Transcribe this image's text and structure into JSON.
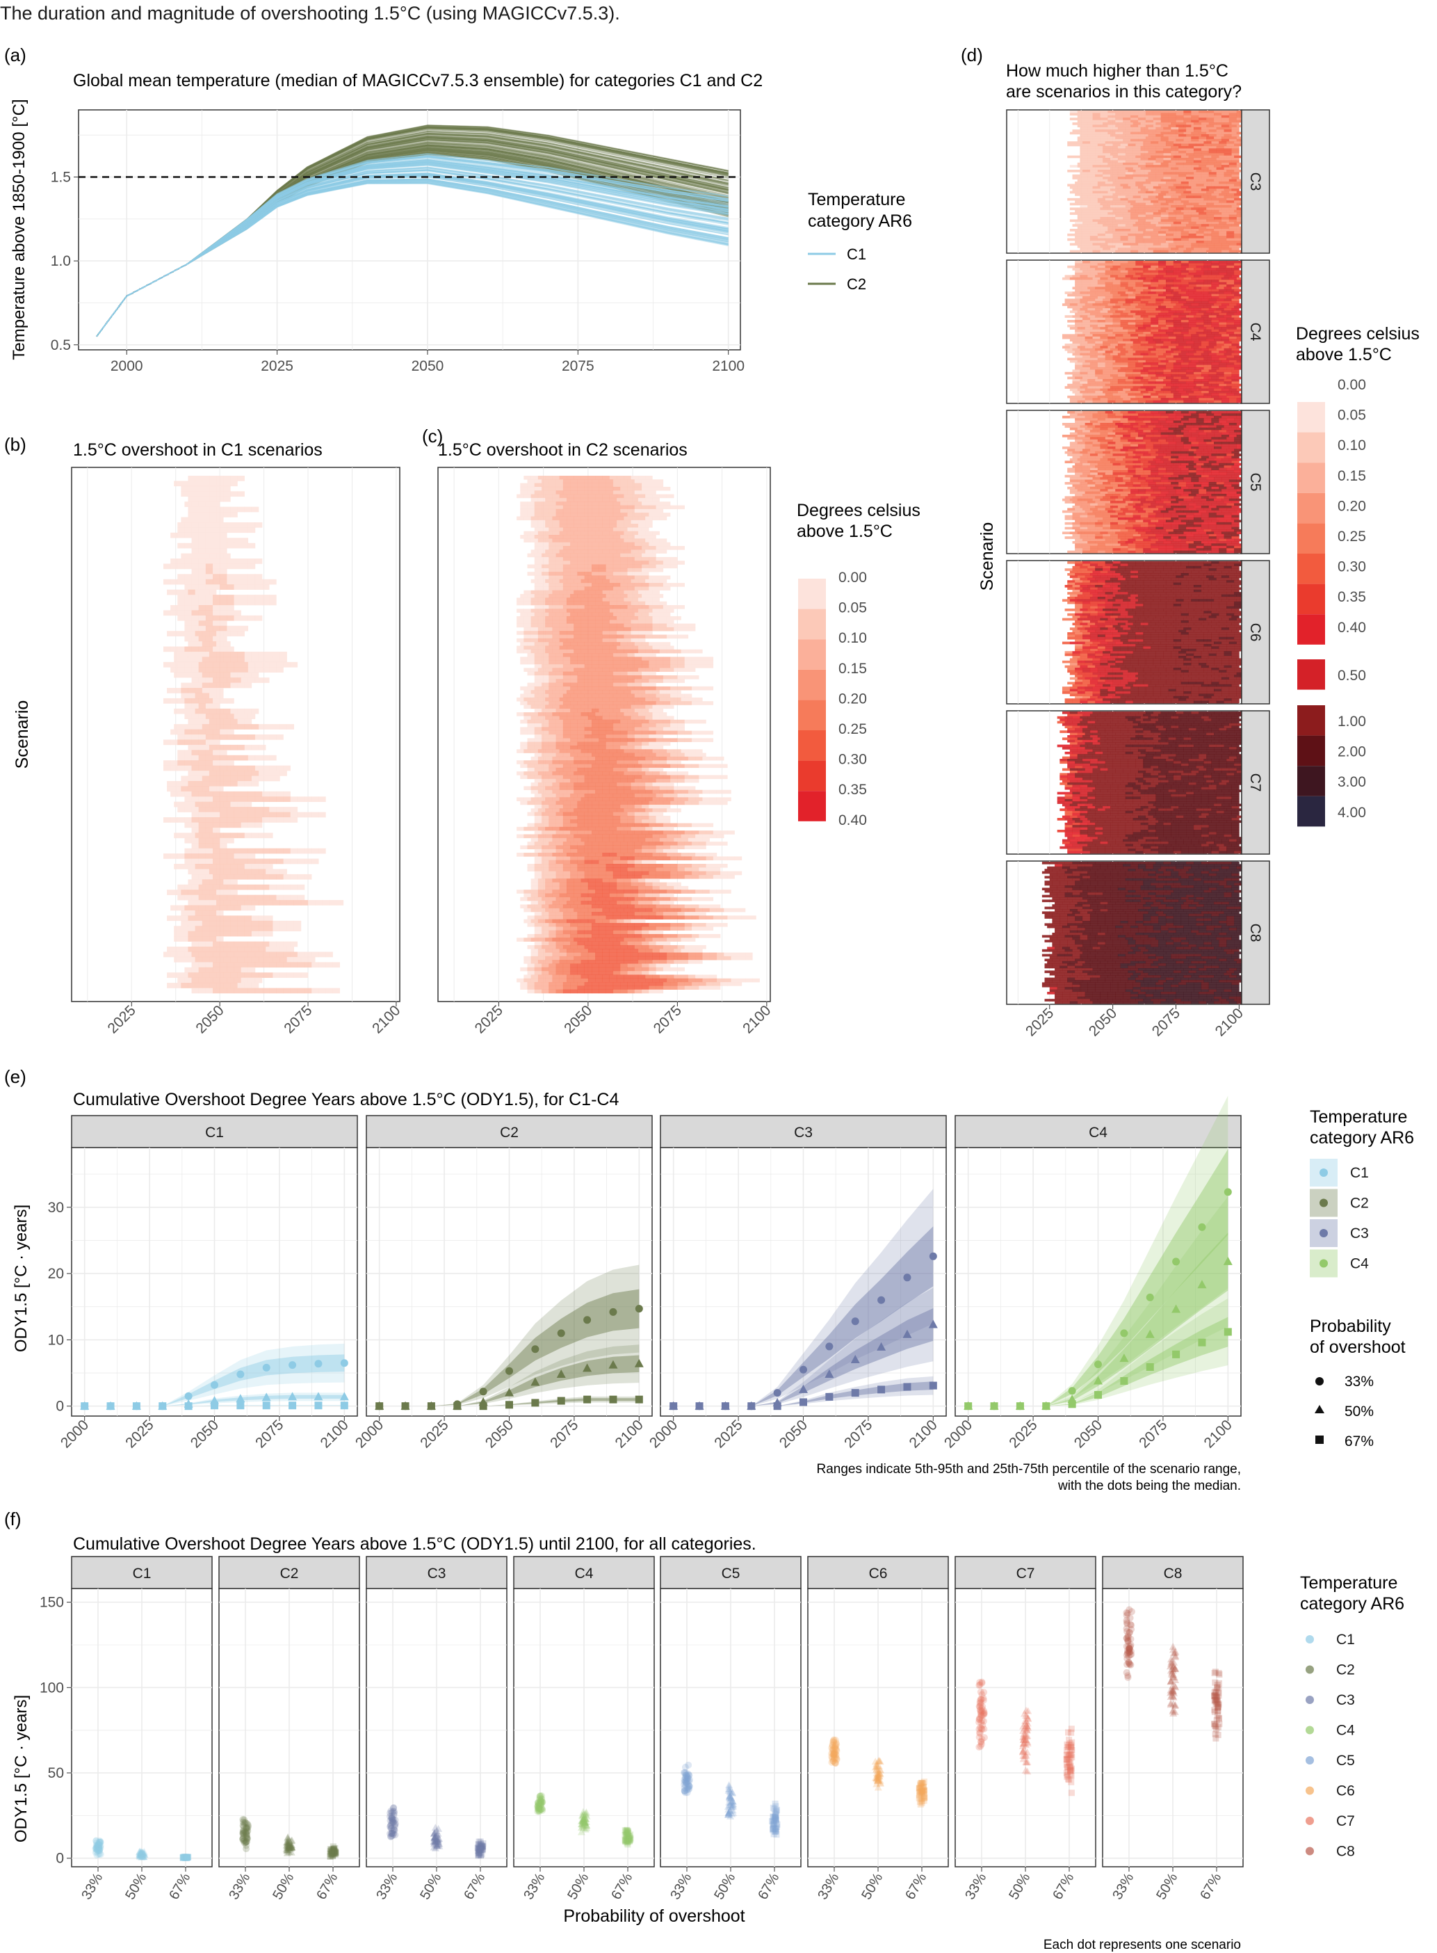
{
  "title": "The duration and magnitude of overshooting 1.5°C (using MAGICCv7.5.3).",
  "colors": {
    "C1": "#8ecbe5",
    "C2": "#6b7a4c",
    "C3": "#6e7aa8",
    "C4": "#93c96a",
    "C5": "#7fa4d4",
    "C6": "#f4a95c",
    "C7": "#e8755f",
    "C8": "#b85a4c",
    "grid": "#ebebeb",
    "strip": "#d9d9d9"
  },
  "overshoot_scale": {
    "labels": [
      "0.00",
      "0.05",
      "0.10",
      "0.15",
      "0.20",
      "0.25",
      "0.30",
      "0.35",
      "0.40"
    ],
    "colors": [
      "#fde3dc",
      "#fcc9b8",
      "#fbb09a",
      "#f99477",
      "#f67b5a",
      "#f25b3e",
      "#ea3b2d",
      "#e2222a"
    ]
  },
  "overshoot_scale_d": {
    "labels": [
      "0.00",
      "0.05",
      "0.10",
      "0.15",
      "0.20",
      "0.25",
      "0.30",
      "0.35",
      "0.40",
      "0.50",
      "1.00",
      "2.00",
      "3.00",
      "4.00"
    ],
    "colors": [
      "#fde3dc",
      "#fcc9b8",
      "#fbb09a",
      "#f99477",
      "#f67b5a",
      "#f25b3e",
      "#ea3b2d",
      "#e2222a",
      "#d42128",
      "#8c1c1d",
      "#5e1116",
      "#3e1620",
      "#2a2640"
    ]
  },
  "panel_a": {
    "tag": "(a)",
    "title": "Global mean temperature (median of MAGICCv7.5.3 ensemble) for categories C1 and C2",
    "ylabel": "Temperature above 1850-1900 [°C]",
    "legend_title_1": "Temperature",
    "legend_title_2": "category AR6",
    "legend_items": [
      "C1",
      "C2"
    ],
    "chart_data": {
      "type": "line",
      "xlim": [
        1992,
        2102
      ],
      "ylim": [
        0.47,
        1.9
      ],
      "x_ticks": [
        2000,
        2025,
        2050,
        2075,
        2100
      ],
      "y_ticks": [
        0.5,
        1.0,
        1.5
      ],
      "x_tick_labels": [
        "2000",
        "2025",
        "2050",
        "2075",
        "2100"
      ],
      "y_tick_labels": [
        "0.5",
        "1.0",
        "1.5"
      ],
      "reference_line": 1.5,
      "series": [
        {
          "name": "C1",
          "x": [
            1995,
            2000,
            2010,
            2020,
            2025,
            2030,
            2040,
            2050,
            2060,
            2070,
            2080,
            2090,
            2100
          ],
          "median": [
            0.55,
            0.79,
            0.98,
            1.22,
            1.36,
            1.44,
            1.53,
            1.55,
            1.5,
            1.44,
            1.37,
            1.3,
            1.24
          ],
          "spread": [
            0,
            0,
            0,
            0.03,
            0.04,
            0.05,
            0.07,
            0.09,
            0.1,
            0.12,
            0.13,
            0.14,
            0.15
          ]
        },
        {
          "name": "C2",
          "x": [
            1995,
            2000,
            2010,
            2020,
            2025,
            2030,
            2040,
            2050,
            2060,
            2070,
            2080,
            2090,
            2100
          ],
          "median": [
            0.55,
            0.79,
            0.98,
            1.22,
            1.38,
            1.5,
            1.66,
            1.72,
            1.7,
            1.64,
            1.56,
            1.48,
            1.4
          ],
          "spread": [
            0,
            0,
            0,
            0.03,
            0.04,
            0.06,
            0.08,
            0.09,
            0.1,
            0.11,
            0.12,
            0.13,
            0.14
          ]
        }
      ]
    }
  },
  "panel_b": {
    "tag": "(b)",
    "title": "1.5°C overshoot in C1 scenarios",
    "ylabel": "Scenario",
    "chart_data": {
      "type": "heatmap",
      "xlim": [
        2008,
        2101
      ],
      "x_ticks": [
        2025,
        2050,
        2075,
        2100
      ],
      "x_tick_labels": [
        "2025",
        "2050",
        "2075",
        "2100"
      ],
      "rows": 100,
      "start_range": [
        2034,
        2043
      ],
      "end_range": [
        2048,
        2090
      ],
      "peak": 0.1
    }
  },
  "panel_c": {
    "tag": "(c)",
    "title": "1.5°C overshoot in C2 scenarios",
    "chart_data": {
      "type": "heatmap",
      "xlim": [
        2008,
        2101
      ],
      "x_ticks": [
        2025,
        2050,
        2075,
        2100
      ],
      "x_tick_labels": [
        "2025",
        "2050",
        "2075",
        "2100"
      ],
      "rows": 140,
      "start_range": [
        2030,
        2036
      ],
      "end_range": [
        2065,
        2100
      ],
      "peak": 0.3
    },
    "legend_title_1": "Degrees celsius",
    "legend_title_2": "above 1.5°C"
  },
  "panel_d": {
    "tag": "(d)",
    "title_1": "How much higher than 1.5°C",
    "title_2": "are scenarios in this category?",
    "ylabel": "Scenario",
    "legend_title_1": "Degrees celsius",
    "legend_title_2": "above 1.5°C",
    "chart_data": {
      "type": "heatmap",
      "xlim": [
        2008,
        2101
      ],
      "x_ticks": [
        2025,
        2050,
        2075,
        2100
      ],
      "x_tick_labels": [
        "2025",
        "2050",
        "2075",
        "2100"
      ],
      "facets": [
        {
          "name": "C3",
          "start": 2032,
          "level": 0.22
        },
        {
          "name": "C4",
          "start": 2030,
          "level": 0.4
        },
        {
          "name": "C5",
          "start": 2030,
          "level": 0.48
        },
        {
          "name": "C6",
          "start": 2030,
          "level": 0.9
        },
        {
          "name": "C7",
          "start": 2028,
          "level": 1.3
        },
        {
          "name": "C8",
          "start": 2022,
          "level": 2.4
        }
      ]
    }
  },
  "panel_e": {
    "tag": "(e)",
    "title": "Cumulative Overshoot Degree Years above 1.5°C (ODY1.5), for C1-C4",
    "ylabel": "ODY1.5 [°C · years]",
    "legend_title_1": "Temperature",
    "legend_title_2": "category AR6",
    "legend_items": [
      "C1",
      "C2",
      "C3",
      "C4"
    ],
    "prob_title_1": "Probability",
    "prob_title_2": "of overshoot",
    "prob_items": [
      "33%",
      "50%",
      "67%"
    ],
    "note_1": "Ranges indicate 5th-95th and 25th-75th percentile of the scenario range,",
    "note_2": "with the dots being the median.",
    "chart_data": {
      "type": "line",
      "x": [
        2000,
        2010,
        2020,
        2030,
        2040,
        2050,
        2060,
        2070,
        2080,
        2090,
        2100
      ],
      "xlim": [
        1995,
        2105
      ],
      "ylim": [
        -1.5,
        39
      ],
      "x_ticks": [
        2000,
        2025,
        2050,
        2075,
        2100
      ],
      "x_tick_labels": [
        "2000",
        "2025",
        "2050",
        "2075",
        "2100"
      ],
      "y_ticks": [
        0,
        10,
        20,
        30
      ],
      "y_tick_labels": [
        "0",
        "10",
        "20",
        "30"
      ],
      "facets": [
        {
          "name": "C1",
          "p33": [
            0,
            0,
            0,
            0,
            1.5,
            3.2,
            4.8,
            5.8,
            6.2,
            6.4,
            6.5
          ],
          "p50": [
            0,
            0,
            0,
            0,
            0.3,
            0.8,
            1.1,
            1.3,
            1.4,
            1.4,
            1.4
          ],
          "p67": [
            0,
            0,
            0,
            0,
            0,
            0.1,
            0.1,
            0.1,
            0.1,
            0.1,
            0.1
          ]
        },
        {
          "name": "C2",
          "p33": [
            0,
            0,
            0,
            0.3,
            2.2,
            5.3,
            8.6,
            11.0,
            13.0,
            14.2,
            14.7
          ],
          "p50": [
            0,
            0,
            0,
            0,
            0.6,
            2.0,
            3.6,
            4.8,
            5.7,
            6.2,
            6.4
          ],
          "p67": [
            0,
            0,
            0,
            0,
            0,
            0.2,
            0.5,
            0.8,
            1.0,
            1.0,
            1.0
          ]
        },
        {
          "name": "C3",
          "p33": [
            0,
            0,
            0,
            0,
            2.0,
            5.5,
            9.0,
            12.8,
            16.0,
            19.4,
            22.6
          ],
          "p50": [
            0,
            0,
            0,
            0,
            0.5,
            2.5,
            4.8,
            7.0,
            8.9,
            10.8,
            12.3
          ],
          "p67": [
            0,
            0,
            0,
            0,
            0,
            0.6,
            1.4,
            2.0,
            2.5,
            2.9,
            3.1
          ]
        },
        {
          "name": "C4",
          "p33": [
            0,
            0,
            0,
            0,
            2.3,
            6.3,
            11.0,
            16.4,
            21.8,
            27.0,
            32.3
          ],
          "p50": [
            0,
            0,
            0,
            0,
            1.0,
            3.8,
            7.2,
            10.8,
            14.6,
            18.3,
            21.8
          ],
          "p67": [
            0,
            0,
            0,
            0,
            0.3,
            1.7,
            3.8,
            5.9,
            7.8,
            9.6,
            11.2
          ]
        }
      ]
    }
  },
  "panel_f": {
    "tag": "(f)",
    "title": "Cumulative Overshoot Degree Years above 1.5°C (ODY1.5) until 2100, for all categories.",
    "ylabel": "ODY1.5 [°C · years]",
    "xlabel": "Probability of overshoot",
    "legend_title_1": "Temperature",
    "legend_title_2": "category AR6",
    "legend_items": [
      "C1",
      "C2",
      "C3",
      "C4",
      "C5",
      "C6",
      "C7",
      "C8"
    ],
    "note": "Each dot represents one scenario",
    "chart_data": {
      "type": "scatter",
      "ylim": [
        -5,
        158
      ],
      "y_ticks": [
        0,
        50,
        100,
        150
      ],
      "y_tick_labels": [
        "0",
        "50",
        "100",
        "150"
      ],
      "x_tick_labels": [
        "33%",
        "50%",
        "67%"
      ],
      "facets": [
        {
          "name": "C1",
          "ranges": [
            [
              1,
              12
            ],
            [
              0,
              4
            ],
            [
              0,
              1
            ]
          ]
        },
        {
          "name": "C2",
          "ranges": [
            [
              5,
              25
            ],
            [
              1,
              13
            ],
            [
              0,
              7
            ]
          ]
        },
        {
          "name": "C3",
          "ranges": [
            [
              10,
              30
            ],
            [
              4,
              19
            ],
            [
              0,
              10
            ]
          ]
        },
        {
          "name": "C4",
          "ranges": [
            [
              26,
              38
            ],
            [
              15,
              28
            ],
            [
              6,
              18
            ]
          ]
        },
        {
          "name": "C5",
          "ranges": [
            [
              35,
              56
            ],
            [
              22,
              44
            ],
            [
              12,
              33
            ]
          ]
        },
        {
          "name": "C6",
          "ranges": [
            [
              52,
              70
            ],
            [
              40,
              58
            ],
            [
              30,
              48
            ]
          ]
        },
        {
          "name": "C7",
          "ranges": [
            [
              62,
              106
            ],
            [
              46,
              91
            ],
            [
              38,
              77
            ]
          ]
        },
        {
          "name": "C8",
          "ranges": [
            [
              98,
              151
            ],
            [
              82,
              130
            ],
            [
              68,
              115
            ]
          ]
        }
      ]
    }
  }
}
